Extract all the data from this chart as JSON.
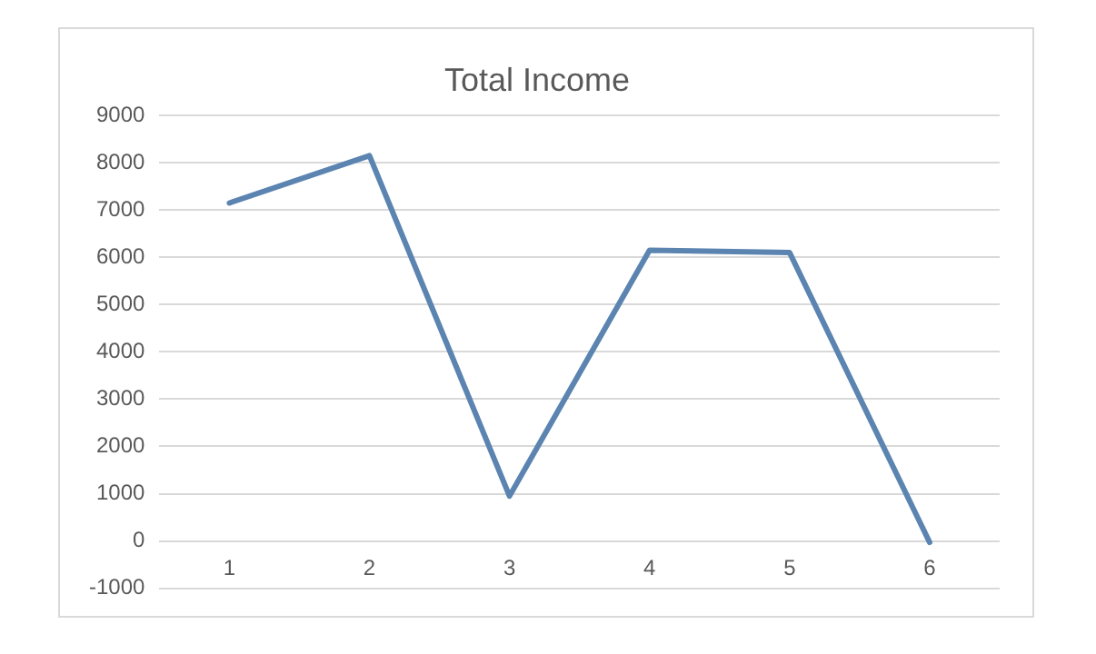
{
  "chart_data": {
    "type": "line",
    "title": "Total Income",
    "categories": [
      "1",
      "2",
      "3",
      "4",
      "5",
      "6"
    ],
    "series": [
      {
        "color": "#5b84b1",
        "values": [
          7150,
          8150,
          950,
          6150,
          6100,
          -30
        ]
      }
    ],
    "ylim": [
      -1000,
      9000
    ],
    "yticks": [
      -1000,
      0,
      1000,
      2000,
      3000,
      4000,
      5000,
      6000,
      7000,
      8000,
      9000
    ],
    "grid": "y",
    "legend": false,
    "marker": "none",
    "line_style": "solid"
  }
}
